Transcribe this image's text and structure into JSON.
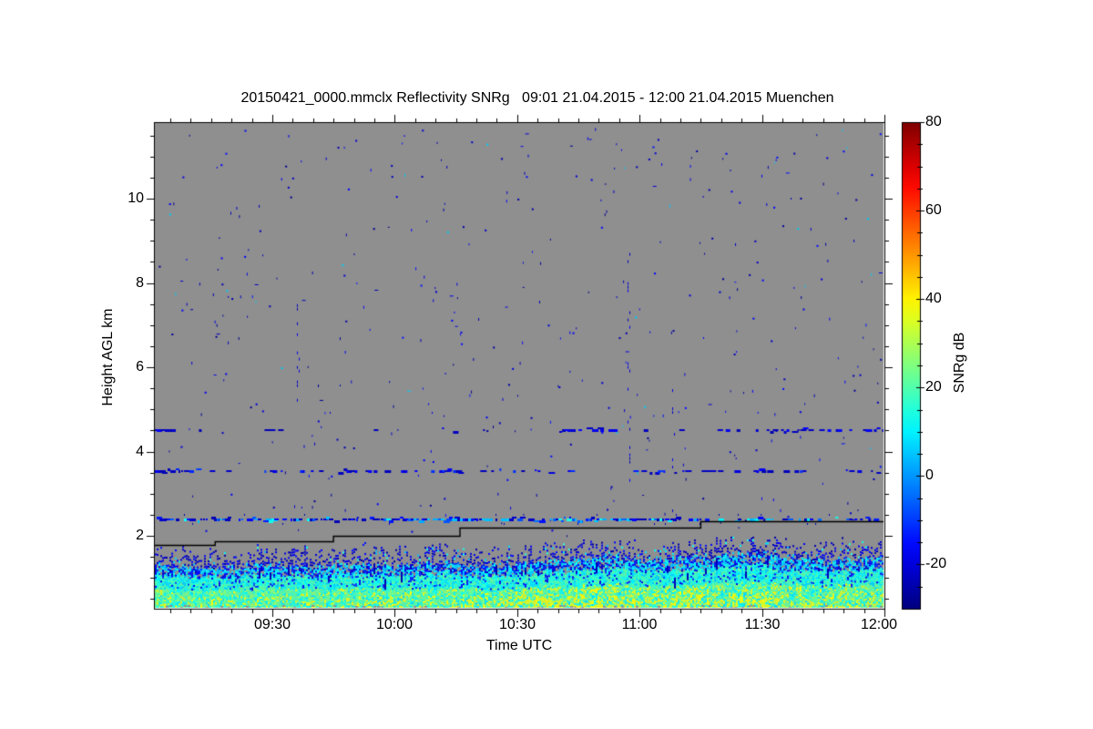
{
  "chart_data": {
    "type": "heatmap",
    "title": "20150421_0000.mmclx Reflectivity SNRg   09:01 21.04.2015 - 12:00 21.04.2015 Muenchen",
    "instrument_file": "20150421_0000.mmclx",
    "quantity": "Reflectivity SNRg",
    "site": "Muenchen",
    "time_span": "09:01 21.04.2015 - 12:00 21.04.2015",
    "xlabel": "Time UTC",
    "ylabel": "Height AGL km",
    "x_start": "09:01",
    "x_end": "12:00",
    "x_major_ticks": [
      "09:30",
      "10:00",
      "10:30",
      "11:00",
      "11:30",
      "12:00"
    ],
    "x_minor_tick_every_min": 5,
    "y_km_min": 0.27,
    "y_km_max": 11.82,
    "y_major_ticks": [
      2,
      4,
      6,
      8,
      10
    ],
    "y_major_tick_labels": [
      "2",
      "4",
      "6",
      "8",
      "10"
    ],
    "y_minor_tick_every_km": 0.5,
    "no_signal_color": "#8f8f8f",
    "frame_color": "#000000",
    "colorbar": {
      "label": "SNRg dB",
      "min_db": -30,
      "max_db": 80,
      "tick_values": [
        80,
        60,
        40,
        20,
        0,
        -20
      ],
      "tick_labels": [
        "80",
        "60",
        "40",
        "20",
        "0",
        "-20"
      ],
      "minor_tick_every_db": 5,
      "colormap": "jet"
    },
    "interference_lines": [
      {
        "height_km": 2.38,
        "palette_db": [
          -25,
          -17,
          -8,
          2,
          10
        ],
        "segments": [
          {
            "from": "09:01",
            "to": "11:10",
            "density": 0.78
          },
          {
            "from": "11:10",
            "to": "11:25",
            "density": 0.4
          },
          {
            "from": "11:25",
            "to": "11:35",
            "density": 0.65
          },
          {
            "from": "11:35",
            "to": "11:48",
            "density": 0.28
          },
          {
            "from": "11:48",
            "to": "12:00",
            "density": 0.45
          }
        ]
      },
      {
        "height_km": 3.53,
        "palette_db": [
          -25,
          -20,
          -13
        ],
        "segments": [
          {
            "from": "09:01",
            "to": "09:10",
            "density": 0.65
          },
          {
            "from": "09:10",
            "to": "12:00",
            "density": 0.3
          }
        ]
      },
      {
        "height_km": 4.51,
        "palette_db": [
          -25,
          -19
        ],
        "segments": [
          {
            "from": "09:01",
            "to": "09:06",
            "density": 0.7
          },
          {
            "from": "09:06",
            "to": "10:39",
            "density": 0.08
          },
          {
            "from": "10:39",
            "to": "10:55",
            "density": 0.5
          },
          {
            "from": "10:55",
            "to": "11:32",
            "density": 0.08
          },
          {
            "from": "11:32",
            "to": "12:00",
            "density": 0.62
          }
        ]
      }
    ],
    "clutter_height_line": {
      "color": "#000000",
      "steps": [
        {
          "from": "09:01",
          "height_km": 1.78
        },
        {
          "from": "09:16",
          "height_km": 1.87
        },
        {
          "from": "09:45",
          "height_km": 2.0
        },
        {
          "from": "10:16",
          "height_km": 2.19
        },
        {
          "from": "11:15",
          "height_km": 2.35
        }
      ]
    },
    "boundary_layer": {
      "description": "surface-attached aerosol/insect echo, SNRg up to ~40 dB near ground",
      "t_min": [
        0,
        10,
        20,
        30,
        40,
        50,
        60,
        70,
        80,
        90,
        100,
        110,
        120,
        130,
        140,
        150,
        160,
        170,
        179
      ],
      "top_km": [
        1.3,
        1.28,
        1.22,
        1.32,
        1.26,
        1.3,
        1.28,
        1.34,
        1.3,
        1.36,
        1.4,
        1.52,
        1.42,
        1.46,
        1.55,
        1.58,
        1.46,
        1.44,
        1.5
      ],
      "yellow_intensity": [
        0.4,
        0.35,
        0.45,
        0.4,
        0.35,
        0.45,
        0.5,
        0.4,
        0.35,
        0.55,
        0.6,
        0.65,
        0.6,
        0.7,
        0.78,
        0.72,
        0.62,
        0.74,
        0.78
      ],
      "fringe_extra_km": 0.32,
      "near_surface_db_range": [
        25,
        40
      ],
      "lowest_gate_gray_dashes": true
    },
    "noise_speckle": {
      "count": 430,
      "db_range": [
        -28,
        -14
      ]
    },
    "echo_streaks": [
      {
        "time": "10:57",
        "km_from": 3.2,
        "km_to": 8.8,
        "density": 0.3
      },
      {
        "time": "11:08",
        "km_from": 2.6,
        "km_to": 6.0,
        "density": 0.25
      },
      {
        "time": "09:36",
        "km_from": 4.8,
        "km_to": 7.5,
        "density": 0.2
      }
    ]
  }
}
